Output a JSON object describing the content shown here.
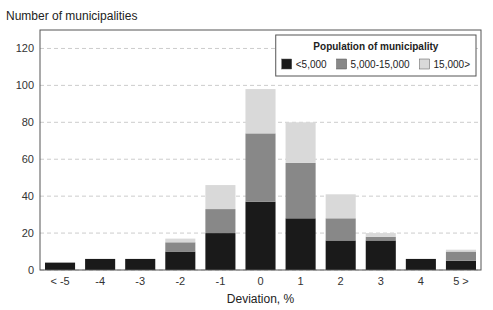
{
  "chart_data": {
    "type": "bar",
    "stacked": true,
    "xlabel": "Deviation, %",
    "ylabel": "Number of municipalities",
    "legend_title": "Population of municipality",
    "legend": "upper right",
    "grid": true,
    "categories": [
      "< -5",
      "-4",
      "-3",
      "-2",
      "-1",
      "0",
      "1",
      "2",
      "3",
      "4",
      "5 >"
    ],
    "series": [
      {
        "name": "<5,000",
        "color": "#1a1a1a",
        "values": [
          4,
          6,
          6,
          10,
          20,
          37,
          28,
          16,
          16,
          6,
          5
        ]
      },
      {
        "name": "5,000-15,000",
        "color": "#888888",
        "values": [
          0,
          0,
          0,
          5,
          13,
          37,
          30,
          12,
          2,
          0,
          5
        ]
      },
      {
        "name": "15,000>",
        "color": "#d9d9d9",
        "values": [
          0,
          0,
          0,
          2,
          13,
          24,
          22,
          13,
          2,
          0,
          1
        ]
      }
    ],
    "ylim": [
      0,
      130
    ],
    "yticks": [
      0,
      20,
      40,
      60,
      80,
      100,
      120
    ]
  }
}
